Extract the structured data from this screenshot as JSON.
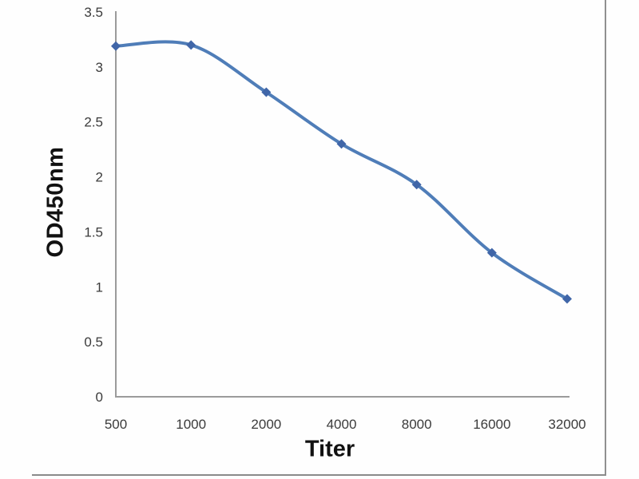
{
  "figure": {
    "background": "#fefefe",
    "frame_color": "#8f8f8f"
  },
  "chart_data": {
    "type": "line",
    "title": "",
    "xlabel": "Titer",
    "ylabel": "OD450nm",
    "categories": [
      "500",
      "1000",
      "2000",
      "4000",
      "8000",
      "16000",
      "32000"
    ],
    "series": [
      {
        "name": "OD450nm",
        "values": [
          3.19,
          3.2,
          2.77,
          2.3,
          1.93,
          1.31,
          0.89
        ]
      }
    ],
    "ylim": [
      0,
      3.5
    ],
    "y_ticks": [
      3.5,
      3,
      2.5,
      2,
      1.5,
      1,
      0.5,
      0
    ],
    "y_tick_labels": [
      "3.5",
      "3",
      "2.5",
      "2",
      "1.5",
      "1",
      "0.5",
      "0"
    ],
    "grid": false,
    "legend_position": "none",
    "smooth": true,
    "marker": "diamond",
    "line_color": "#4f7db8",
    "marker_color": "#4066a8",
    "axis_color": "#9b9b9b",
    "tick_label_color": "#3b3b3b",
    "line_width": 4
  }
}
